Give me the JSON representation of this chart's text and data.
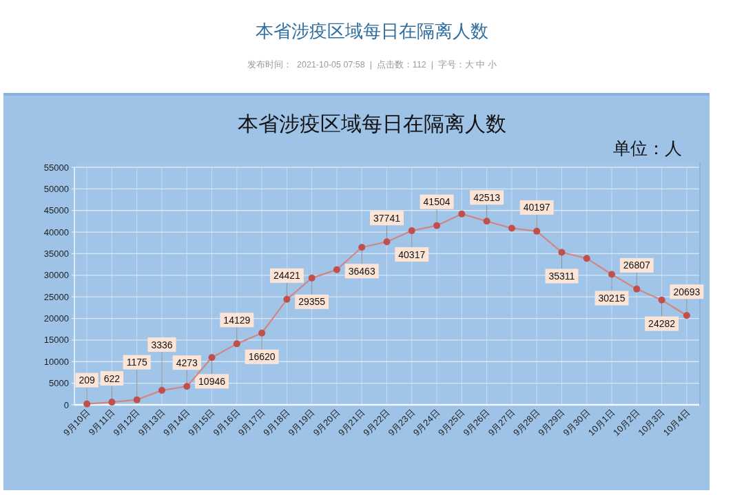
{
  "chart_data": {
    "type": "line",
    "title": "本省涉疫区域每日在隔离人数",
    "annotations": [
      "本省涉疫区域每日在隔离人数",
      "发布时间：  2021-10-05 07:58  |  点击数：112  |  字号：大 中 小",
      "单位：人"
    ],
    "categories": [
      "9月10日",
      "9月11日",
      "9月12日",
      "9月13日",
      "9月14日",
      "9月15日",
      "9月16日",
      "9月17日",
      "9月18日",
      "9月19日",
      "9月20日",
      "9月21日",
      "9月22日",
      "9月23日",
      "9月24日",
      "9月25日",
      "9月26日",
      "9月27日",
      "9月28日",
      "9月29日",
      "9月30日",
      "10月1日",
      "10月2日",
      "10月3日",
      "10月4日"
    ],
    "series": [
      {
        "color": "#c0504d",
        "values": [
          209,
          622,
          1175,
          3336,
          4273,
          10946,
          14129,
          16620,
          24421,
          29355,
          31300,
          36463,
          37741,
          40317,
          41504,
          44200,
          42513,
          40900,
          40197,
          35311,
          33900,
          30215,
          26807,
          24282,
          20693
        ],
        "value_labels": [
          "209",
          "622",
          "1175",
          "3336",
          "4273",
          "10946",
          "14129",
          "16620",
          "24421",
          "29355",
          null,
          "36463",
          "37741",
          "40317",
          "41504",
          null,
          "42513",
          null,
          "40197",
          "35311",
          null,
          "30215",
          "26807",
          "24282",
          "20693"
        ]
      }
    ],
    "ylim": [
      0,
      55000
    ],
    "yticks": [
      0,
      5000,
      10000,
      15000,
      20000,
      25000,
      30000,
      35000,
      40000,
      45000,
      50000,
      55000
    ],
    "grid": true,
    "marker": "circle",
    "line_style": "solid"
  }
}
